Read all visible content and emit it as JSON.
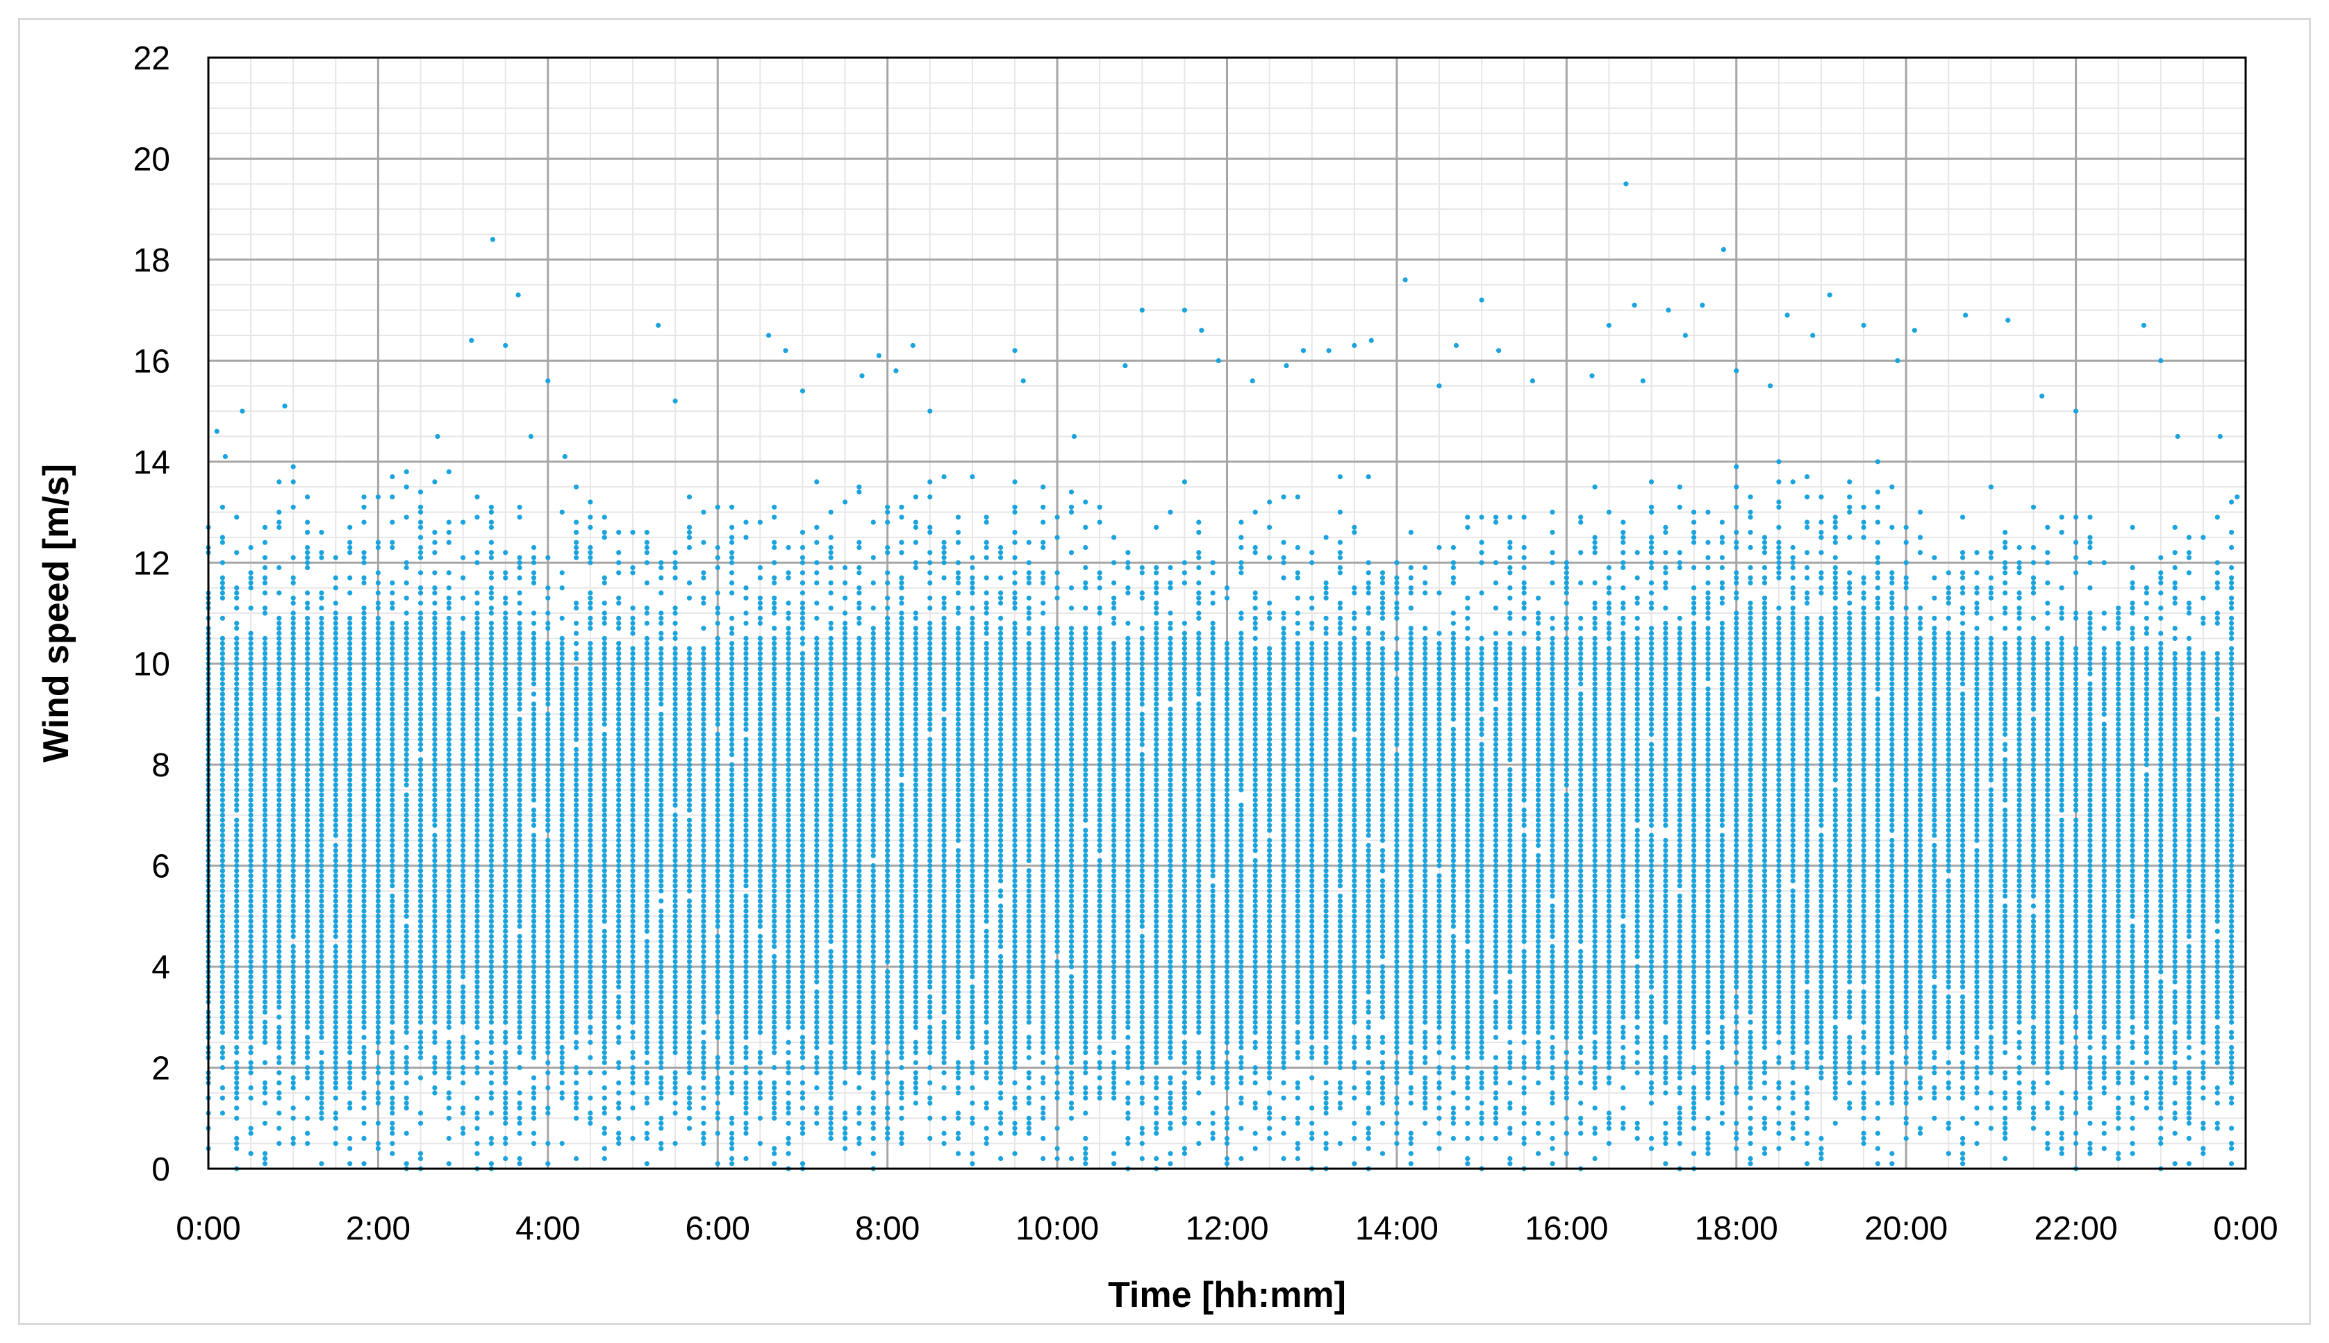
{
  "chart_data": {
    "type": "scatter",
    "title": "",
    "xlabel": "Time [hh:mm]",
    "ylabel": "Wind speed [m/s]",
    "xlim": [
      0,
      24
    ],
    "ylim": [
      0,
      22
    ],
    "x_tick_labels": [
      "0:00",
      "2:00",
      "4:00",
      "6:00",
      "8:00",
      "10:00",
      "12:00",
      "14:00",
      "16:00",
      "18:00",
      "20:00",
      "22:00",
      "0:00"
    ],
    "y_tick_labels": [
      "0",
      "2",
      "4",
      "6",
      "8",
      "10",
      "12",
      "14",
      "16",
      "18",
      "20",
      "22"
    ],
    "grid": true,
    "minor_grid": true,
    "legend": "none",
    "marker_color": "#1aa3dd",
    "series": [
      {
        "sampling": "10-minute readings over many days; measured speeds quantized in steps of 0.1 m/s",
        "dense_band_hourly_max": [
          10.6,
          11.0,
          10.9,
          10.7,
          10.5,
          10.4,
          10.5,
          10.6,
          10.8,
          10.8,
          10.5,
          10.6,
          10.4,
          10.5,
          10.3,
          10.4,
          10.6,
          10.8,
          11.0,
          11.0,
          10.6,
          10.5,
          10.4,
          10.3
        ],
        "outlier_points": [
          [
            0.0,
            12.7
          ],
          [
            0.1,
            14.6
          ],
          [
            0.2,
            14.1
          ],
          [
            0.4,
            15.0
          ],
          [
            0.9,
            15.1
          ],
          [
            2.7,
            14.5
          ],
          [
            3.1,
            16.4
          ],
          [
            3.35,
            18.4
          ],
          [
            3.5,
            16.3
          ],
          [
            3.65,
            17.3
          ],
          [
            3.8,
            14.5
          ],
          [
            4.0,
            15.6
          ],
          [
            4.2,
            14.1
          ],
          [
            5.3,
            16.7
          ],
          [
            5.5,
            15.2
          ],
          [
            6.6,
            16.5
          ],
          [
            6.8,
            16.2
          ],
          [
            7.0,
            15.4
          ],
          [
            7.7,
            15.7
          ],
          [
            7.9,
            16.1
          ],
          [
            8.1,
            15.8
          ],
          [
            8.3,
            16.3
          ],
          [
            8.5,
            15.0
          ],
          [
            9.5,
            16.2
          ],
          [
            9.6,
            15.6
          ],
          [
            10.2,
            14.5
          ],
          [
            10.8,
            15.9
          ],
          [
            11.0,
            17.0
          ],
          [
            11.5,
            17.0
          ],
          [
            11.7,
            16.6
          ],
          [
            11.9,
            16.0
          ],
          [
            12.3,
            15.6
          ],
          [
            12.7,
            15.9
          ],
          [
            12.9,
            16.2
          ],
          [
            13.2,
            16.2
          ],
          [
            13.5,
            16.3
          ],
          [
            13.7,
            16.4
          ],
          [
            14.1,
            17.6
          ],
          [
            14.5,
            15.5
          ],
          [
            14.7,
            16.3
          ],
          [
            15.0,
            17.2
          ],
          [
            15.2,
            16.2
          ],
          [
            15.6,
            15.6
          ],
          [
            16.3,
            15.7
          ],
          [
            16.5,
            16.7
          ],
          [
            16.7,
            19.5
          ],
          [
            16.8,
            17.1
          ],
          [
            16.9,
            15.6
          ],
          [
            17.2,
            17.0
          ],
          [
            17.4,
            16.5
          ],
          [
            17.6,
            17.1
          ],
          [
            17.85,
            18.2
          ],
          [
            18.0,
            15.8
          ],
          [
            18.4,
            15.5
          ],
          [
            18.6,
            16.9
          ],
          [
            18.9,
            16.5
          ],
          [
            19.1,
            17.3
          ],
          [
            19.5,
            16.7
          ],
          [
            19.9,
            16.0
          ],
          [
            20.1,
            16.6
          ],
          [
            20.7,
            16.9
          ],
          [
            21.2,
            16.8
          ],
          [
            21.6,
            15.3
          ],
          [
            22.0,
            15.0
          ],
          [
            22.8,
            16.7
          ],
          [
            23.0,
            16.0
          ],
          [
            23.2,
            14.5
          ],
          [
            23.7,
            14.5
          ],
          [
            23.9,
            13.3
          ]
        ]
      }
    ]
  }
}
